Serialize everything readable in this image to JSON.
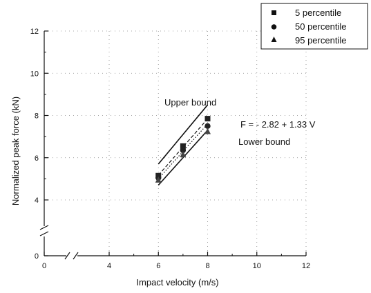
{
  "chart_data": {
    "type": "scatter",
    "xlabel": "Impact velocity (m/s)",
    "ylabel": "Normalized peak force (kN)",
    "xlim": [
      0,
      12
    ],
    "ylim": [
      0,
      12
    ],
    "x_ticks": [
      0,
      4,
      6,
      8,
      10,
      12
    ],
    "y_ticks": [
      0,
      4,
      6,
      8,
      10,
      12
    ],
    "x_axis_break_between": [
      0,
      4
    ],
    "y_axis_break_between": [
      0,
      4
    ],
    "grid": "dotted",
    "legend_position": "top-right",
    "series": [
      {
        "name": "5 percentile",
        "marker": "square",
        "x": [
          6,
          7,
          8
        ],
        "y": [
          5.15,
          6.55,
          7.85
        ]
      },
      {
        "name": "50 percentile",
        "marker": "circle",
        "x": [
          6,
          7,
          8
        ],
        "y": [
          5.05,
          6.35,
          7.5
        ]
      },
      {
        "name": "95 percentile",
        "marker": "triangle",
        "x": [
          6,
          7,
          8
        ],
        "y": [
          4.95,
          6.15,
          7.25
        ]
      }
    ],
    "lines": [
      {
        "style": "solid",
        "x": [
          6,
          8
        ],
        "y": [
          5.7,
          8.5
        ]
      },
      {
        "style": "dashed",
        "x": [
          6,
          8
        ],
        "y": [
          5.17,
          7.84
        ]
      },
      {
        "style": "dotted",
        "x": [
          6,
          8
        ],
        "y": [
          5.0,
          7.6
        ]
      },
      {
        "style": "solid",
        "x": [
          6,
          8
        ],
        "y": [
          4.7,
          7.3
        ]
      }
    ],
    "annotations": {
      "upper_bound": "Upper bound",
      "lower_bound": "Lower bound",
      "equation": "F = - 2.82 + 1.33 V"
    }
  }
}
